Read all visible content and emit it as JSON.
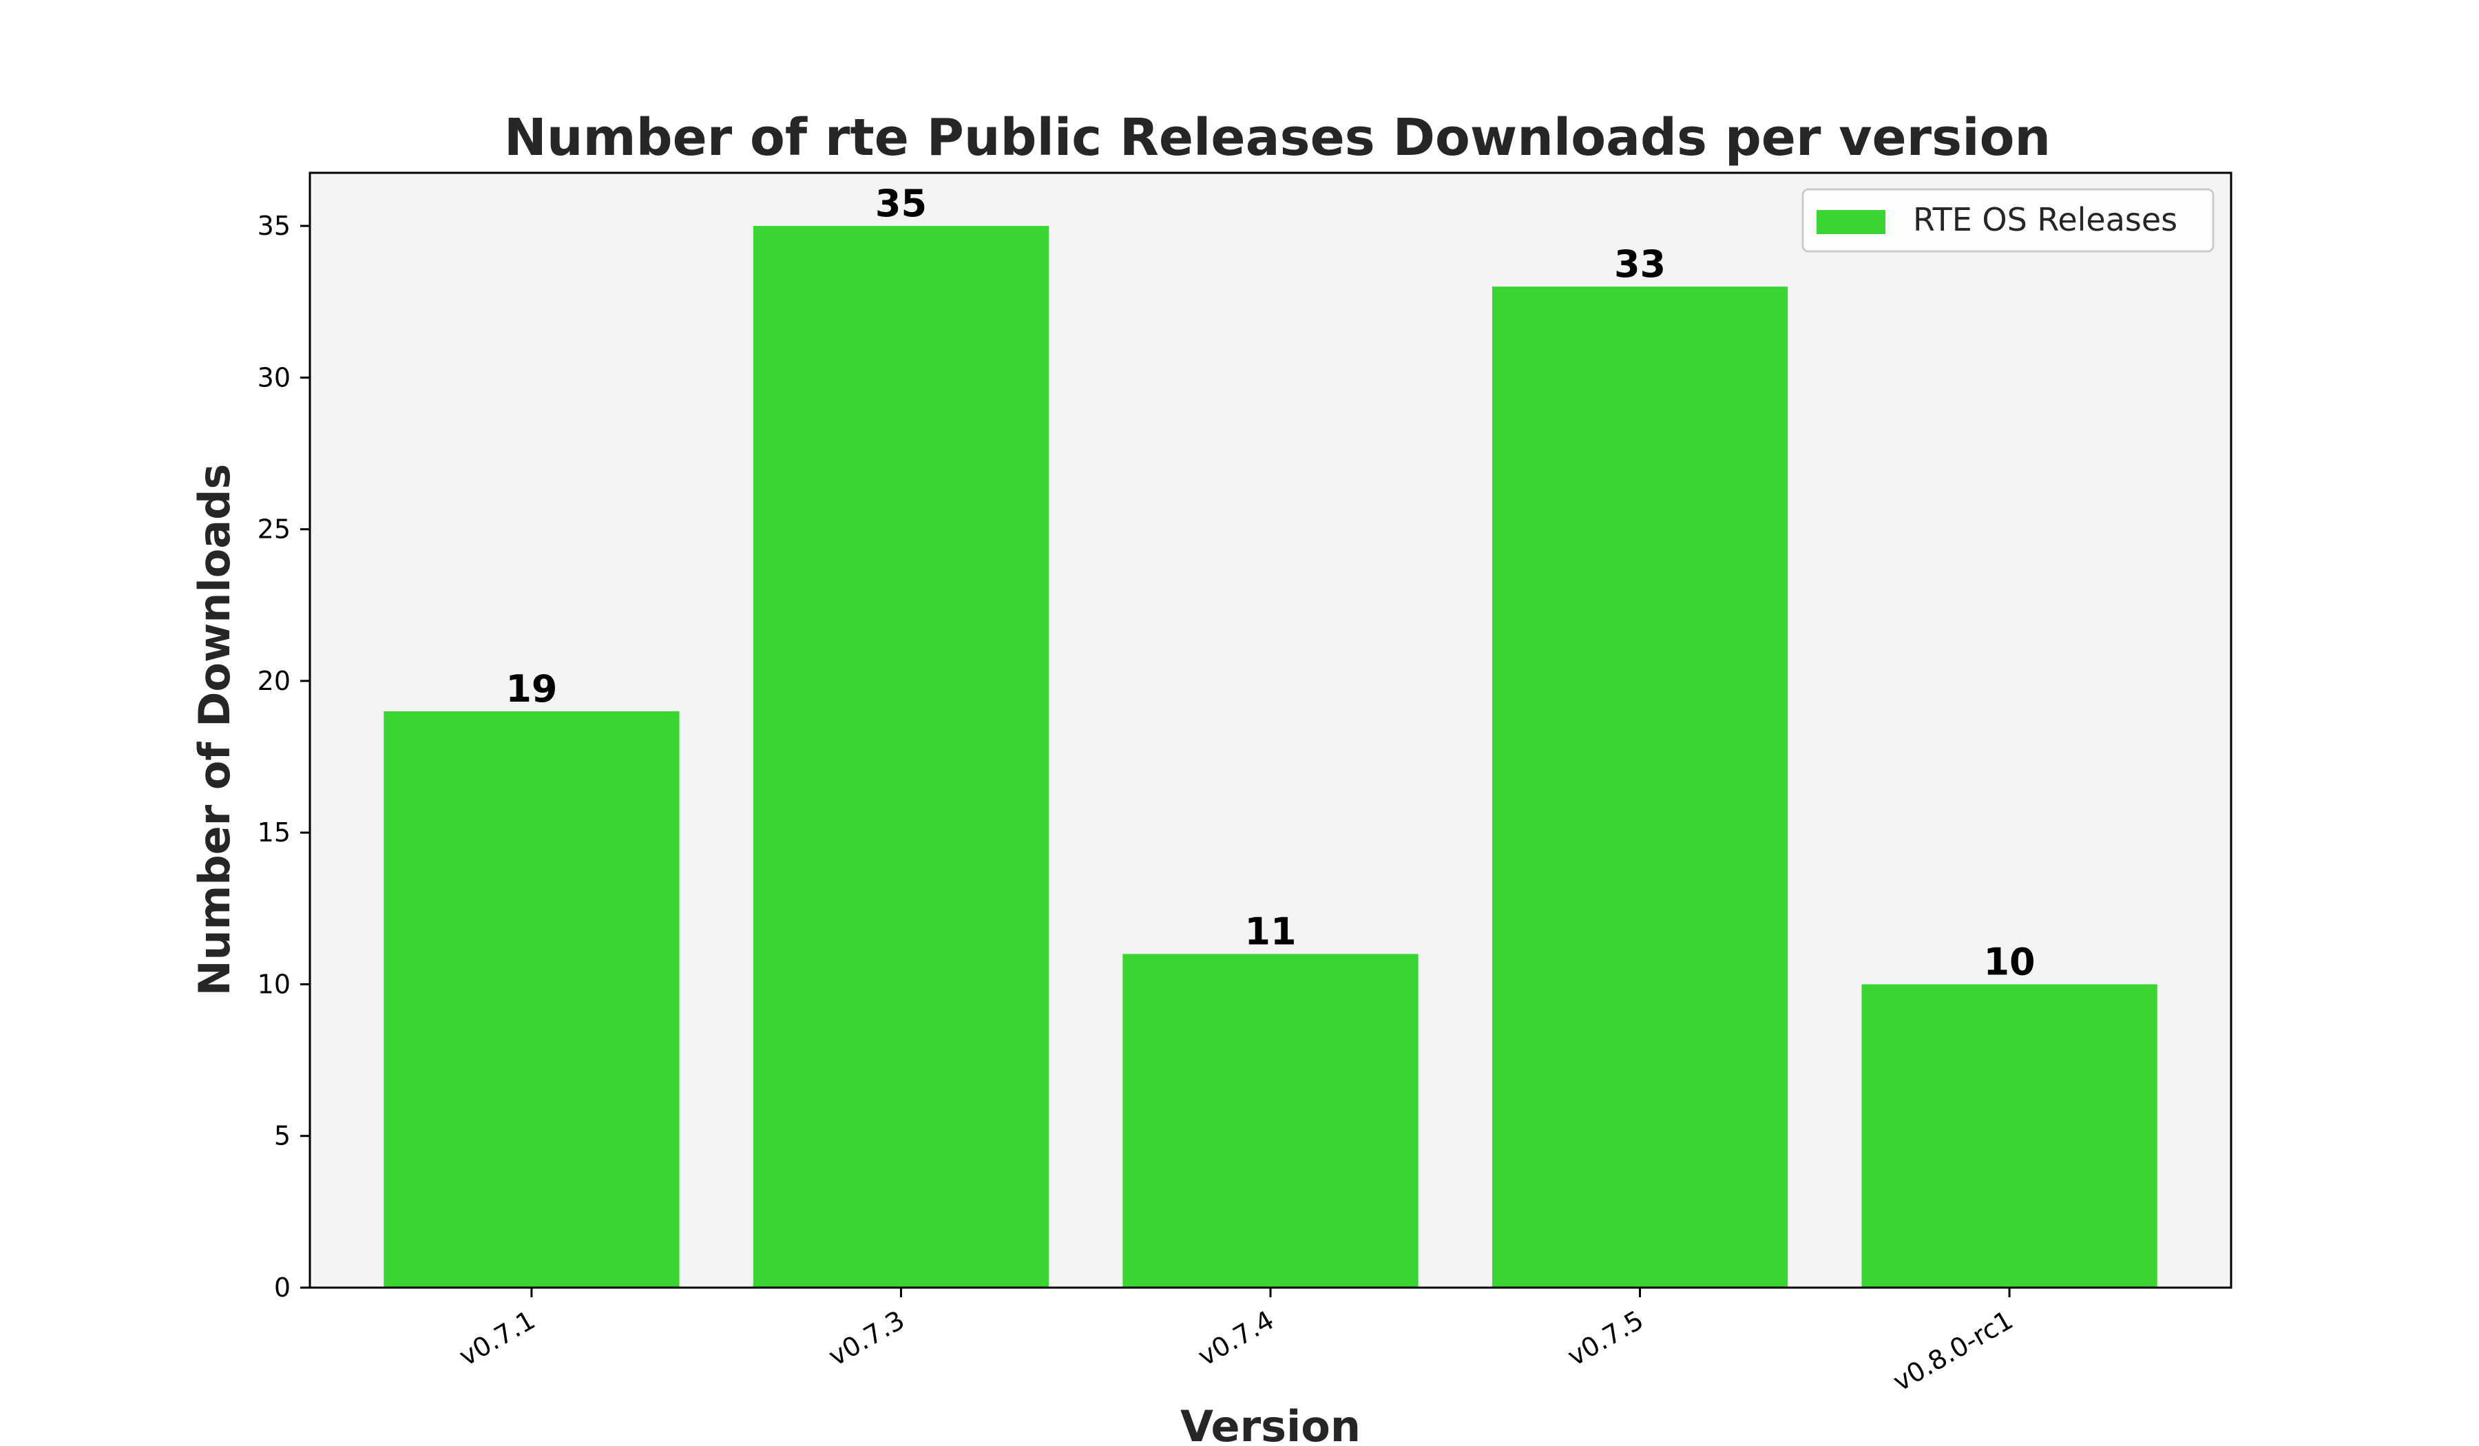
{
  "chart_data": {
    "type": "bar",
    "title": "Number of rte Public Releases Downloads per version",
    "xlabel": "Version",
    "ylabel": "Number of Downloads",
    "categories": [
      "v0.7.1",
      "v0.7.3",
      "v0.7.4",
      "v0.7.5",
      "v0.8.0-rc1"
    ],
    "series": [
      {
        "name": "RTE OS Releases",
        "values": [
          19,
          35,
          11,
          33,
          10
        ],
        "color": "#3ad533"
      }
    ],
    "data_labels": [
      "19",
      "35",
      "11",
      "33",
      "10"
    ],
    "ylim": [
      0,
      36.75
    ],
    "yticks": [
      0,
      5,
      10,
      15,
      20,
      25,
      30,
      35
    ],
    "ytick_labels": [
      "0",
      "5",
      "10",
      "15",
      "20",
      "25",
      "30",
      "35"
    ],
    "xtick_rotation": -30,
    "grid": false,
    "legend_position": "top-right",
    "background_color": "#f4f4f4"
  }
}
